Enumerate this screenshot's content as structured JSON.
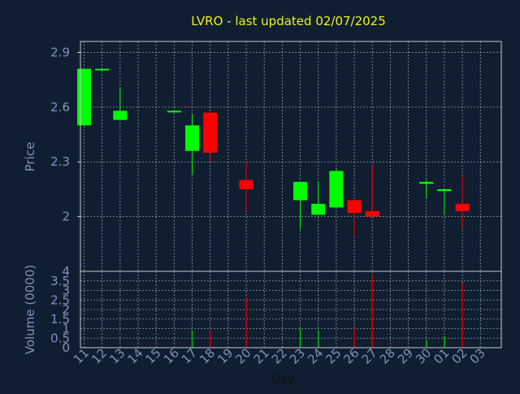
{
  "colors": {
    "background": "#0f1e31",
    "plot_bg": "#0f1e31",
    "frame": "#c9c9c9",
    "grid": "#c9c9c9",
    "axis_text": "#7e95b7",
    "title": "#f1ef1f",
    "x_title": "#111111",
    "up": "#00ff00",
    "down": "#ff0000",
    "vol_up": "#00c000",
    "vol_down": "#d00000"
  },
  "chart_data": [
    {
      "id": "price-panel",
      "type": "candlestick",
      "title": "LVRO - last updated 02/07/2025",
      "ylabel": "Price",
      "ylim": [
        1.7,
        2.96
      ],
      "yticks": [
        "2",
        "2.3",
        "2.6",
        "2.9"
      ],
      "categories": [
        "11",
        "12",
        "13",
        "14",
        "15",
        "16",
        "17",
        "18",
        "19",
        "20",
        "21",
        "22",
        "23",
        "24",
        "25",
        "26",
        "27",
        "28",
        "29",
        "30",
        "01",
        "02",
        "03"
      ],
      "series": [
        {
          "day": "11",
          "open": 2.5,
          "high": 2.81,
          "low": 2.5,
          "close": 2.81
        },
        {
          "day": "12",
          "open": 2.81,
          "high": 2.81,
          "low": 2.81,
          "close": 2.81
        },
        {
          "day": "13",
          "open": 2.53,
          "high": 2.71,
          "low": 2.53,
          "close": 2.58
        },
        {
          "day": "16",
          "open": 2.58,
          "high": 2.58,
          "low": 2.58,
          "close": 2.58
        },
        {
          "day": "17",
          "open": 2.36,
          "high": 2.56,
          "low": 2.23,
          "close": 2.5
        },
        {
          "day": "18",
          "open": 2.57,
          "high": 2.57,
          "low": 2.3,
          "close": 2.35
        },
        {
          "day": "20",
          "open": 2.2,
          "high": 2.3,
          "low": 2.03,
          "close": 2.15
        },
        {
          "day": "23",
          "open": 2.09,
          "high": 2.19,
          "low": 1.93,
          "close": 2.19
        },
        {
          "day": "24",
          "open": 2.01,
          "high": 2.19,
          "low": 2.01,
          "close": 2.07
        },
        {
          "day": "25",
          "open": 2.05,
          "high": 2.26,
          "low": 2.05,
          "close": 2.25
        },
        {
          "day": "26",
          "open": 2.09,
          "high": 2.09,
          "low": 1.89,
          "close": 2.02
        },
        {
          "day": "27",
          "open": 2.03,
          "high": 2.28,
          "low": 2.0,
          "close": 2.0
        },
        {
          "day": "30",
          "open": 2.18,
          "high": 2.2,
          "low": 2.1,
          "close": 2.19
        },
        {
          "day": "01",
          "open": 2.14,
          "high": 2.15,
          "low": 2.01,
          "close": 2.15
        },
        {
          "day": "02",
          "open": 2.07,
          "high": 2.22,
          "low": 1.94,
          "close": 2.03
        }
      ]
    },
    {
      "id": "volume-panel",
      "type": "bar",
      "xlabel": "Day",
      "ylabel": "Volume (0000)",
      "ylim": [
        0,
        4
      ],
      "yticks": [
        "0",
        "0.5",
        "1",
        "1.5",
        "2",
        "2.5",
        "3",
        "3.5",
        "4"
      ],
      "categories": [
        "11",
        "12",
        "13",
        "14",
        "15",
        "16",
        "17",
        "18",
        "19",
        "20",
        "21",
        "22",
        "23",
        "24",
        "25",
        "26",
        "27",
        "28",
        "29",
        "30",
        "01",
        "02",
        "03"
      ],
      "values": [
        {
          "day": "11",
          "volume": 0.05,
          "up": true
        },
        {
          "day": "12",
          "volume": 0.05,
          "up": true
        },
        {
          "day": "13",
          "volume": 0.05,
          "up": true
        },
        {
          "day": "16",
          "volume": 0.02,
          "up": true
        },
        {
          "day": "17",
          "volume": 0.9,
          "up": true
        },
        {
          "day": "18",
          "volume": 0.9,
          "up": false
        },
        {
          "day": "20",
          "volume": 2.6,
          "up": false
        },
        {
          "day": "23",
          "volume": 1.0,
          "up": true
        },
        {
          "day": "24",
          "volume": 0.9,
          "up": true
        },
        {
          "day": "25",
          "volume": 0.05,
          "up": true
        },
        {
          "day": "26",
          "volume": 1.0,
          "up": false
        },
        {
          "day": "27",
          "volume": 3.8,
          "up": false
        },
        {
          "day": "30",
          "volume": 0.4,
          "up": true
        },
        {
          "day": "01",
          "volume": 0.6,
          "up": true
        },
        {
          "day": "02",
          "volume": 3.4,
          "up": false
        }
      ]
    }
  ]
}
